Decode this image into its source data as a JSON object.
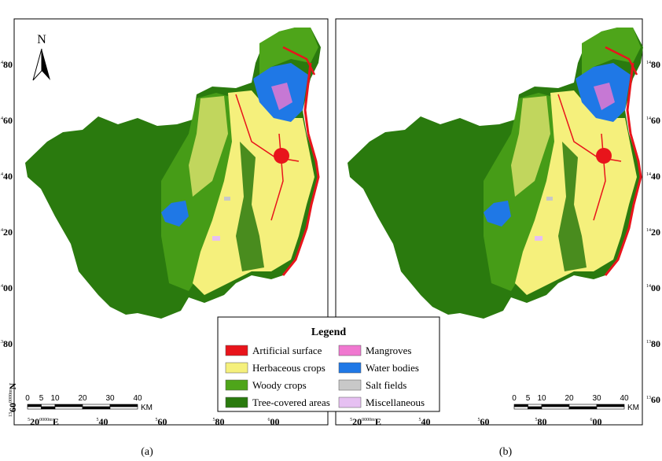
{
  "north": "N",
  "legend": {
    "title": "Legend",
    "items": [
      {
        "label": "Artificial surface",
        "color": "#e8141b"
      },
      {
        "label": "Herbaceous crops",
        "color": "#f5f07c"
      },
      {
        "label": "Woody crops",
        "color": "#4ea51a"
      },
      {
        "label": "Tree-covered areas",
        "color": "#2a7a0e"
      },
      {
        "label": "Mangroves",
        "color": "#f078d0"
      },
      {
        "label": "Water bodies",
        "color": "#1f78e6"
      },
      {
        "label": "Salt fields",
        "color": "#c8c8c8"
      },
      {
        "label": "Miscellaneous",
        "color": "#e6c0f2"
      }
    ]
  },
  "scalebar": {
    "ticks": [
      0,
      5,
      10,
      20,
      30,
      40
    ],
    "unit": "KM"
  },
  "left_labels": [
    {
      "sup": "14",
      "main": "80"
    },
    {
      "sup": "14",
      "main": "60"
    },
    {
      "sup": "14",
      "main": "40"
    },
    {
      "sup": "14",
      "main": "20"
    },
    {
      "sup": "14",
      "main": "00"
    },
    {
      "sup": "13",
      "main": "80"
    },
    {
      "sup": "13",
      "main": "60",
      "sup2": "0000m",
      "end": "N"
    }
  ],
  "right_labels": [
    {
      "sup": "14",
      "main": "80"
    },
    {
      "sup": "14",
      "main": "60"
    },
    {
      "sup": "14",
      "main": "40"
    },
    {
      "sup": "14",
      "main": "20"
    },
    {
      "sup": "14",
      "main": "00"
    },
    {
      "sup": "13",
      "main": "80"
    },
    {
      "sup": "13",
      "main": "60"
    }
  ],
  "bottom_labels_a": [
    {
      "sup": "5",
      "main": "20",
      "sup2": "0000m",
      "end": "E"
    },
    {
      "sup": "5",
      "main": "40"
    },
    {
      "sup": "5",
      "main": "60"
    },
    {
      "sup": "5",
      "main": "80"
    },
    {
      "sup": "6",
      "main": "00"
    }
  ],
  "bottom_labels_b": [
    {
      "sup": "5",
      "main": "20",
      "sup2": "0000m",
      "end": "E"
    },
    {
      "sup": "5",
      "main": "40"
    },
    {
      "sup": "5",
      "main": "60"
    },
    {
      "sup": "5",
      "main": "80"
    },
    {
      "sup": "6",
      "main": "00"
    }
  ],
  "captions": [
    "(a)",
    "(b)"
  ]
}
